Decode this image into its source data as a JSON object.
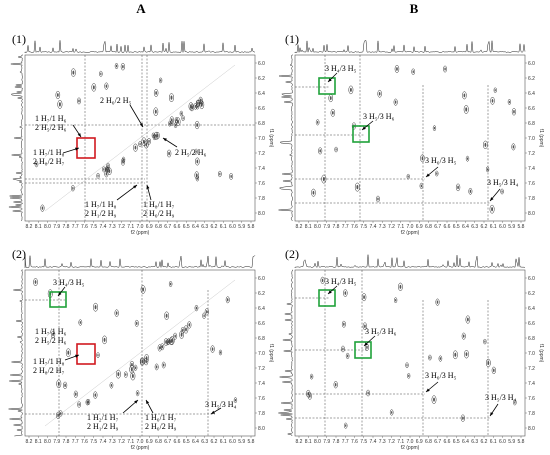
{
  "figure": {
    "col_labels": [
      "A",
      "B"
    ],
    "panel_numbers": [
      "(1)",
      "(2)"
    ],
    "axis_unit_label": "f1 (ppm)",
    "x_axis_label": "f2 (ppm)",
    "x_ticks": [
      "8.2",
      "8.1",
      "8.0",
      "7.9",
      "7.8",
      "7.7",
      "7.6",
      "7.5",
      "7.4",
      "7.3",
      "7.2",
      "7.1",
      "7.0",
      "6.9",
      "6.8",
      "6.7",
      "6.6",
      "6.5",
      "6.4",
      "6.3",
      "6.2",
      "6.1",
      "6.0",
      "5.9",
      "5.8"
    ],
    "y_ticks": [
      "6.0",
      "6.2",
      "6.4",
      "6.6",
      "6.8",
      "7.0",
      "7.2",
      "7.4",
      "7.6",
      "7.8",
      "8.0"
    ],
    "panel_A1_annotations": [
      "2 H₆/2 H₅",
      "1 H₇/1 H₆",
      "2 H₅/2 H₆",
      "1 H₇/1 H₈",
      "2 H₈/2 H₇",
      "2 H₅/2 H₆",
      "1 H₇/1 H₈",
      "2 H₁/2 H₉",
      "1 H₈/1 H₇",
      "2 H₆/2 H₉"
    ],
    "panel_A2_annotations": [
      "3 H₄/3 H₅",
      "1 H₇/1 H₆",
      "2 H₅/2 H₆",
      "1 H₇/1 H₈",
      "2 H₈/2 H₇",
      "1 H₂/1 H₇",
      "2 H₁/2 H₉",
      "1 H₆/1 H₇",
      "2 H₆/2 H₉",
      "3 H₅/3 H₄"
    ],
    "panel_B1_annotations": [
      "3 H₄/3 H₅",
      "3 H₅/3 H₆",
      "3 H₆/3 H₅",
      "3 H₅/3 H₄"
    ],
    "panel_B2_annotations": [
      "3 H₄/3 H₅",
      "3 H₅/3 H₆",
      "3 H₆/3 H₅",
      "3 H₅/3 H₄"
    ],
    "highlight_colors": {
      "red": "#d0191f",
      "green": "#1fa23a"
    }
  }
}
